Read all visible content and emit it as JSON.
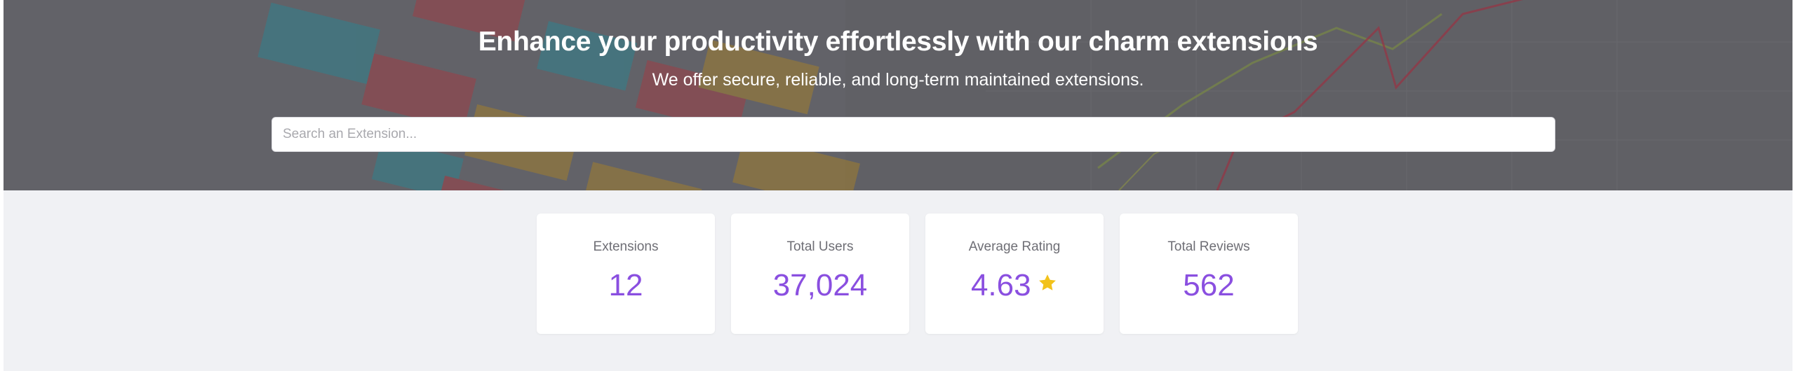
{
  "hero": {
    "title": "Enhance your productivity effortlessly with our charm extensions",
    "subtitle": "We offer secure, reliable, and long-term maintained extensions."
  },
  "search": {
    "placeholder": "Search an Extension...",
    "value": ""
  },
  "stats": [
    {
      "label": "Extensions",
      "value": "12"
    },
    {
      "label": "Total Users",
      "value": "37,024"
    },
    {
      "label": "Average Rating",
      "value": "4.63",
      "icon": "star-icon"
    },
    {
      "label": "Total Reviews",
      "value": "562"
    }
  ],
  "colors": {
    "accent": "#8a4fe0",
    "star": "#f2c21b",
    "background": "#f0f1f4"
  }
}
